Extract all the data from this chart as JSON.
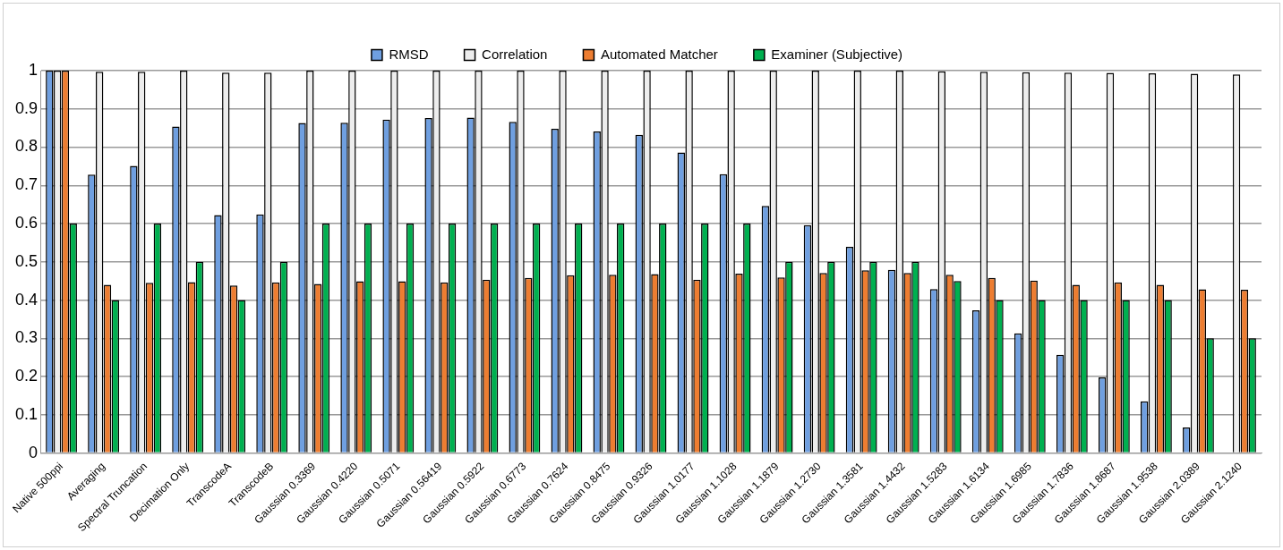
{
  "chart_data": {
    "type": "bar",
    "categories": [
      "Native 500ppi",
      "Averaging",
      "Spectral Truncation",
      "Decimation Only",
      "TranscodeA",
      "TranscodeB",
      "Gaussian 0.3369",
      "Gaussian 0.4220",
      "Gaussian 0.5071",
      "Gaussian 0.56419",
      "Gaussian 0.5922",
      "Gaussian 0.6773",
      "Gaussian 0.7624",
      "Gaussian 0.8475",
      "Gaussian 0.9326",
      "Gaussian 1.0177",
      "Gaussian 1.1028",
      "Gaussian 1.1879",
      "Gaussian 1.2730",
      "Gaussian 1.3581",
      "Gaussian 1.4432",
      "Gaussian 1.5283",
      "Gaussian 1.6134",
      "Gaussian 1.6985",
      "Gaussian 1.7836",
      "Gaussian 1.8687",
      "Gaussian 1.9538",
      "Gaussian 2.0389",
      "Gaussian 2.1240"
    ],
    "series": [
      {
        "name": "RMSD",
        "color": "#6f9fe0",
        "values": [
          1,
          0.728,
          0.751,
          0.854,
          0.622,
          0.624,
          0.863,
          0.864,
          0.872,
          0.876,
          0.877,
          0.866,
          0.848,
          0.841,
          0.832,
          0.786,
          0.729,
          0.646,
          0.596,
          0.539,
          0.479,
          0.429,
          0.373,
          0.313,
          0.257,
          0.198,
          0.135,
          0.067,
          0
        ]
      },
      {
        "name": "Correlation",
        "color": "#ededed",
        "values": [
          1,
          0.997,
          0.997,
          1,
          0.995,
          0.995,
          1,
          1,
          1,
          1,
          1,
          1,
          1,
          1,
          1,
          1,
          1,
          1,
          1,
          1,
          1,
          0.998,
          0.997,
          0.996,
          0.995,
          0.994,
          0.993,
          0.992,
          0.99
        ]
      },
      {
        "name": "Automated Matcher",
        "color": "#ed7d31",
        "values": [
          1,
          0.44,
          0.445,
          0.447,
          0.438,
          0.446,
          0.442,
          0.449,
          0.449,
          0.446,
          0.453,
          0.458,
          0.465,
          0.466,
          0.468,
          0.453,
          0.469,
          0.459,
          0.471,
          0.478,
          0.471,
          0.466,
          0.458,
          0.451,
          0.44,
          0.446,
          0.44,
          0.428,
          0.427
        ]
      },
      {
        "name": "Examiner (Subjective)",
        "color": "#00b050",
        "values": [
          0.6,
          0.4,
          0.6,
          0.5,
          0.4,
          0.5,
          0.6,
          0.6,
          0.6,
          0.6,
          0.6,
          0.6,
          0.6,
          0.6,
          0.6,
          0.6,
          0.6,
          0.5,
          0.5,
          0.5,
          0.5,
          0.45,
          0.4,
          0.4,
          0.4,
          0.4,
          0.4,
          0.3,
          0.3
        ]
      }
    ],
    "ylim": [
      0,
      1
    ],
    "yticks": [
      0,
      0.1,
      0.2,
      0.3,
      0.4,
      0.5,
      0.6,
      0.7,
      0.8,
      0.9,
      1
    ],
    "grid": "y",
    "legend": "top"
  }
}
